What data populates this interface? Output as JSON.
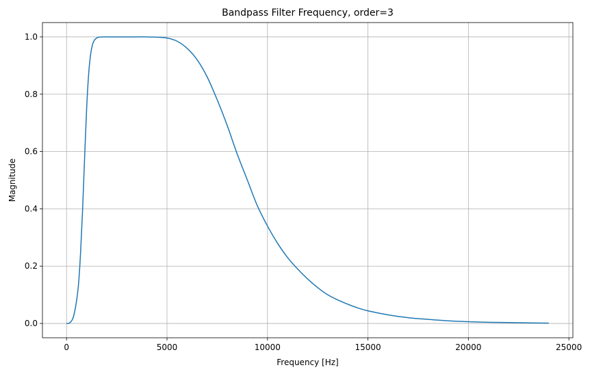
{
  "chart_data": {
    "type": "line",
    "title": "Bandpass Filter Frequency, order=3",
    "xlabel": "Frequency [Hz]",
    "ylabel": "Magnitude",
    "xlim": [
      -1200,
      25200
    ],
    "ylim": [
      -0.05,
      1.05
    ],
    "xticks": [
      0,
      5000,
      10000,
      15000,
      20000,
      25000
    ],
    "xtick_labels": [
      "0",
      "5000",
      "10000",
      "15000",
      "20000",
      "25000"
    ],
    "yticks": [
      0.0,
      0.2,
      0.4,
      0.6,
      0.8,
      1.0
    ],
    "ytick_labels": [
      "0.0",
      "0.2",
      "0.4",
      "0.6",
      "0.8",
      "1.0"
    ],
    "grid": true,
    "series": [
      {
        "color": "#1f77b4",
        "x": [
          0,
          100,
          200,
          300,
          400,
          500,
          600,
          700,
          800,
          900,
          1000,
          1100,
          1200,
          1300,
          1400,
          1500,
          1600,
          1800,
          2000,
          2500,
          3000,
          3500,
          4000,
          4500,
          5000,
          5500,
          6000,
          6500,
          7000,
          7500,
          8000,
          8500,
          9000,
          9500,
          10000,
          10500,
          11000,
          11500,
          12000,
          12500,
          13000,
          13500,
          14000,
          14500,
          15000,
          16000,
          17000,
          18000,
          19000,
          20000,
          21000,
          22000,
          23000,
          24000
        ],
        "y": [
          0.0,
          0.0,
          0.005,
          0.015,
          0.04,
          0.08,
          0.14,
          0.25,
          0.4,
          0.58,
          0.75,
          0.87,
          0.94,
          0.975,
          0.99,
          0.996,
          0.999,
          1.0,
          1.0,
          1.0,
          1.0,
          1.0,
          1.0,
          0.999,
          0.996,
          0.985,
          0.96,
          0.92,
          0.86,
          0.78,
          0.69,
          0.59,
          0.5,
          0.41,
          0.34,
          0.28,
          0.23,
          0.19,
          0.155,
          0.125,
          0.1,
          0.082,
          0.067,
          0.054,
          0.044,
          0.03,
          0.02,
          0.014,
          0.009,
          0.006,
          0.004,
          0.003,
          0.002,
          0.001
        ]
      }
    ]
  }
}
